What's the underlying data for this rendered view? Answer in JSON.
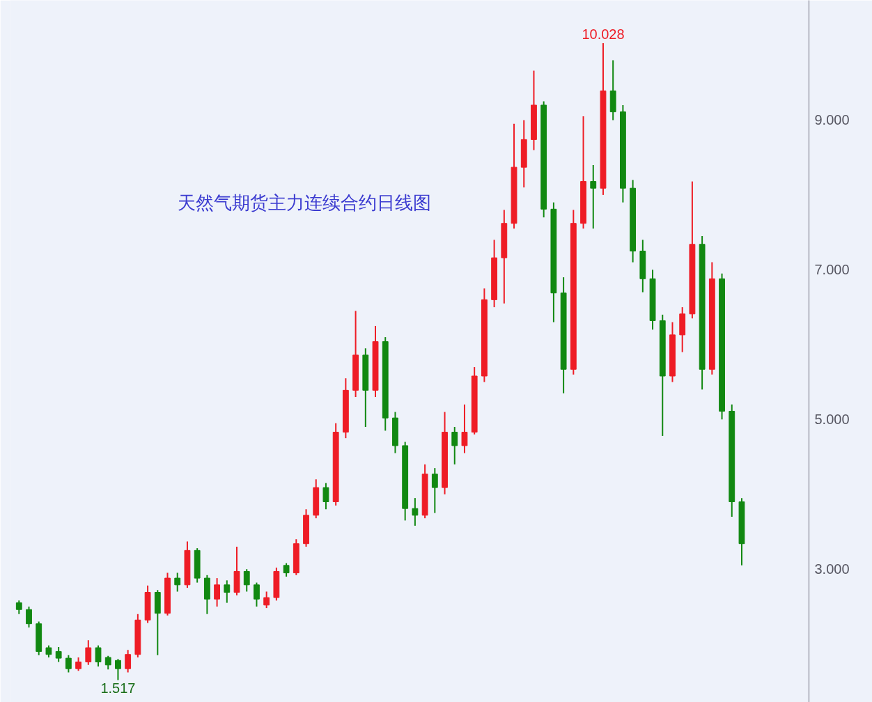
{
  "chart_data": {
    "type": "candlestick",
    "title": "天然气期货主力连续合约日线图",
    "categories": [
      null,
      null,
      null,
      null,
      null,
      null,
      null,
      null,
      null,
      null,
      null,
      null,
      null,
      null,
      null,
      null,
      null,
      null,
      null,
      null,
      null,
      null,
      null,
      null,
      null,
      null,
      null,
      null,
      null,
      null,
      null,
      null,
      null,
      null,
      null,
      null,
      null,
      null,
      null,
      null,
      null,
      null,
      null,
      null,
      null,
      null,
      null,
      null,
      null,
      null,
      null,
      null,
      null,
      null,
      null,
      null,
      null,
      null,
      null,
      null,
      null,
      null,
      null,
      null,
      null,
      null,
      null,
      null,
      null,
      null,
      null,
      null,
      null,
      null
    ],
    "ohlc": [
      [
        2.55,
        2.58,
        2.4,
        2.46
      ],
      [
        2.46,
        2.5,
        2.22,
        2.27
      ],
      [
        2.27,
        2.3,
        1.85,
        1.9
      ],
      [
        1.95,
        1.98,
        1.82,
        1.86
      ],
      [
        1.9,
        1.96,
        1.76,
        1.81
      ],
      [
        1.81,
        1.85,
        1.62,
        1.67
      ],
      [
        1.67,
        1.82,
        1.64,
        1.76
      ],
      [
        1.76,
        2.05,
        1.72,
        1.95
      ],
      [
        1.95,
        1.98,
        1.7,
        1.76
      ],
      [
        1.82,
        1.84,
        1.66,
        1.72
      ],
      [
        1.78,
        1.8,
        1.517,
        1.67
      ],
      [
        1.67,
        1.92,
        1.62,
        1.86
      ],
      [
        1.86,
        2.4,
        1.82,
        2.32
      ],
      [
        2.32,
        2.78,
        2.28,
        2.69
      ],
      [
        2.69,
        2.72,
        1.85,
        2.41
      ],
      [
        2.41,
        2.95,
        2.38,
        2.88
      ],
      [
        2.88,
        2.95,
        2.7,
        2.79
      ],
      [
        2.79,
        3.37,
        2.75,
        3.25
      ],
      [
        3.25,
        3.28,
        2.82,
        2.88
      ],
      [
        2.88,
        2.92,
        2.4,
        2.6
      ],
      [
        2.6,
        2.88,
        2.5,
        2.79
      ],
      [
        2.79,
        2.85,
        2.55,
        2.69
      ],
      [
        2.69,
        3.3,
        2.65,
        2.97
      ],
      [
        2.97,
        3.0,
        2.7,
        2.79
      ],
      [
        2.79,
        2.82,
        2.5,
        2.6
      ],
      [
        2.52,
        2.7,
        2.48,
        2.62
      ],
      [
        2.62,
        3.02,
        2.58,
        2.97
      ],
      [
        3.05,
        3.08,
        2.9,
        2.95
      ],
      [
        2.95,
        3.4,
        2.92,
        3.34
      ],
      [
        3.34,
        3.8,
        3.3,
        3.72
      ],
      [
        3.72,
        4.2,
        3.68,
        4.09
      ],
      [
        4.09,
        4.15,
        3.8,
        3.9
      ],
      [
        3.9,
        4.95,
        3.85,
        4.83
      ],
      [
        4.83,
        5.55,
        4.75,
        5.39
      ],
      [
        5.39,
        6.45,
        5.3,
        5.86
      ],
      [
        5.86,
        5.95,
        4.9,
        5.39
      ],
      [
        5.39,
        6.25,
        5.3,
        6.04
      ],
      [
        6.04,
        6.1,
        4.85,
        5.02
      ],
      [
        5.02,
        5.1,
        4.55,
        4.65
      ],
      [
        4.65,
        4.7,
        3.65,
        3.81
      ],
      [
        3.81,
        3.95,
        3.58,
        3.72
      ],
      [
        3.72,
        4.4,
        3.68,
        4.27
      ],
      [
        4.27,
        4.35,
        3.75,
        4.09
      ],
      [
        4.09,
        5.1,
        4.0,
        4.83
      ],
      [
        4.83,
        4.9,
        4.4,
        4.65
      ],
      [
        4.65,
        5.2,
        4.55,
        4.83
      ],
      [
        4.83,
        5.7,
        4.8,
        5.58
      ],
      [
        5.58,
        6.75,
        5.5,
        6.6
      ],
      [
        6.6,
        7.4,
        6.5,
        7.16
      ],
      [
        7.16,
        7.8,
        6.55,
        7.62
      ],
      [
        7.62,
        8.95,
        7.55,
        8.37
      ],
      [
        8.37,
        9.0,
        8.1,
        8.74
      ],
      [
        8.74,
        9.66,
        8.6,
        9.2
      ],
      [
        9.2,
        9.25,
        7.7,
        7.81
      ],
      [
        7.81,
        7.9,
        6.3,
        6.69
      ],
      [
        6.69,
        6.9,
        5.35,
        5.67
      ],
      [
        5.67,
        7.8,
        5.6,
        7.62
      ],
      [
        7.62,
        9.05,
        7.55,
        8.18
      ],
      [
        8.18,
        8.4,
        7.55,
        8.09
      ],
      [
        8.09,
        10.028,
        8.0,
        9.39
      ],
      [
        9.39,
        9.8,
        9.0,
        9.11
      ],
      [
        9.11,
        9.2,
        7.9,
        8.09
      ],
      [
        8.09,
        8.2,
        7.1,
        7.25
      ],
      [
        7.25,
        7.4,
        6.7,
        6.88
      ],
      [
        6.88,
        7.0,
        6.2,
        6.32
      ],
      [
        6.32,
        6.4,
        4.78,
        5.58
      ],
      [
        5.58,
        6.3,
        5.5,
        6.13
      ],
      [
        6.13,
        6.5,
        5.9,
        6.41
      ],
      [
        6.41,
        8.18,
        6.35,
        7.34
      ],
      [
        7.34,
        7.45,
        5.4,
        5.67
      ],
      [
        5.67,
        7.1,
        5.6,
        6.88
      ],
      [
        6.88,
        6.95,
        5.0,
        5.11
      ],
      [
        5.11,
        5.2,
        3.7,
        3.9
      ],
      [
        3.9,
        3.95,
        3.05,
        3.34
      ]
    ],
    "ylim": [
      1.22,
      10.6
    ],
    "yticks": [
      {
        "value": 3,
        "label": "3.000"
      },
      {
        "value": 5,
        "label": "5.000"
      },
      {
        "value": 7,
        "label": "7.000"
      },
      {
        "value": 9,
        "label": "9.000"
      }
    ],
    "tick_labels": "y",
    "annotations": [
      {
        "text": "10.028",
        "y": 10.028
      },
      {
        "text": "1.517",
        "y": 1.517
      }
    ]
  }
}
